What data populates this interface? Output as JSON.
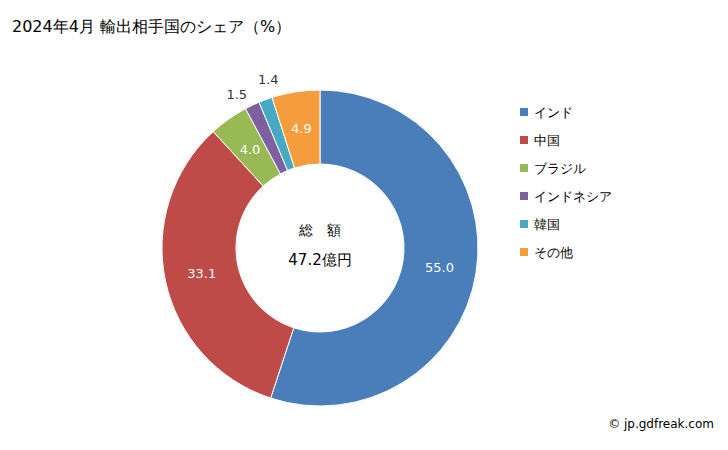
{
  "chart_data": {
    "type": "pie",
    "title": "2024年4月 輸出相手国のシェア（%）",
    "categories": [
      "インド",
      "中国",
      "ブラジル",
      "インドネシア",
      "韓国",
      "その他"
    ],
    "values": [
      55.0,
      33.1,
      4.0,
      1.5,
      1.4,
      4.9
    ],
    "value_labels": [
      "55.0",
      "33.1",
      "4.0",
      "1.5",
      "1.4",
      "4.9"
    ],
    "colors": [
      "#4a7ebb",
      "#be4b48",
      "#98b954",
      "#7d60a0",
      "#46aac5",
      "#f59d3d"
    ],
    "data_labels": true,
    "legend": "right",
    "annotations": [
      "総　額",
      "47.2億円"
    ],
    "source": "© jp.gdfreak.com"
  }
}
